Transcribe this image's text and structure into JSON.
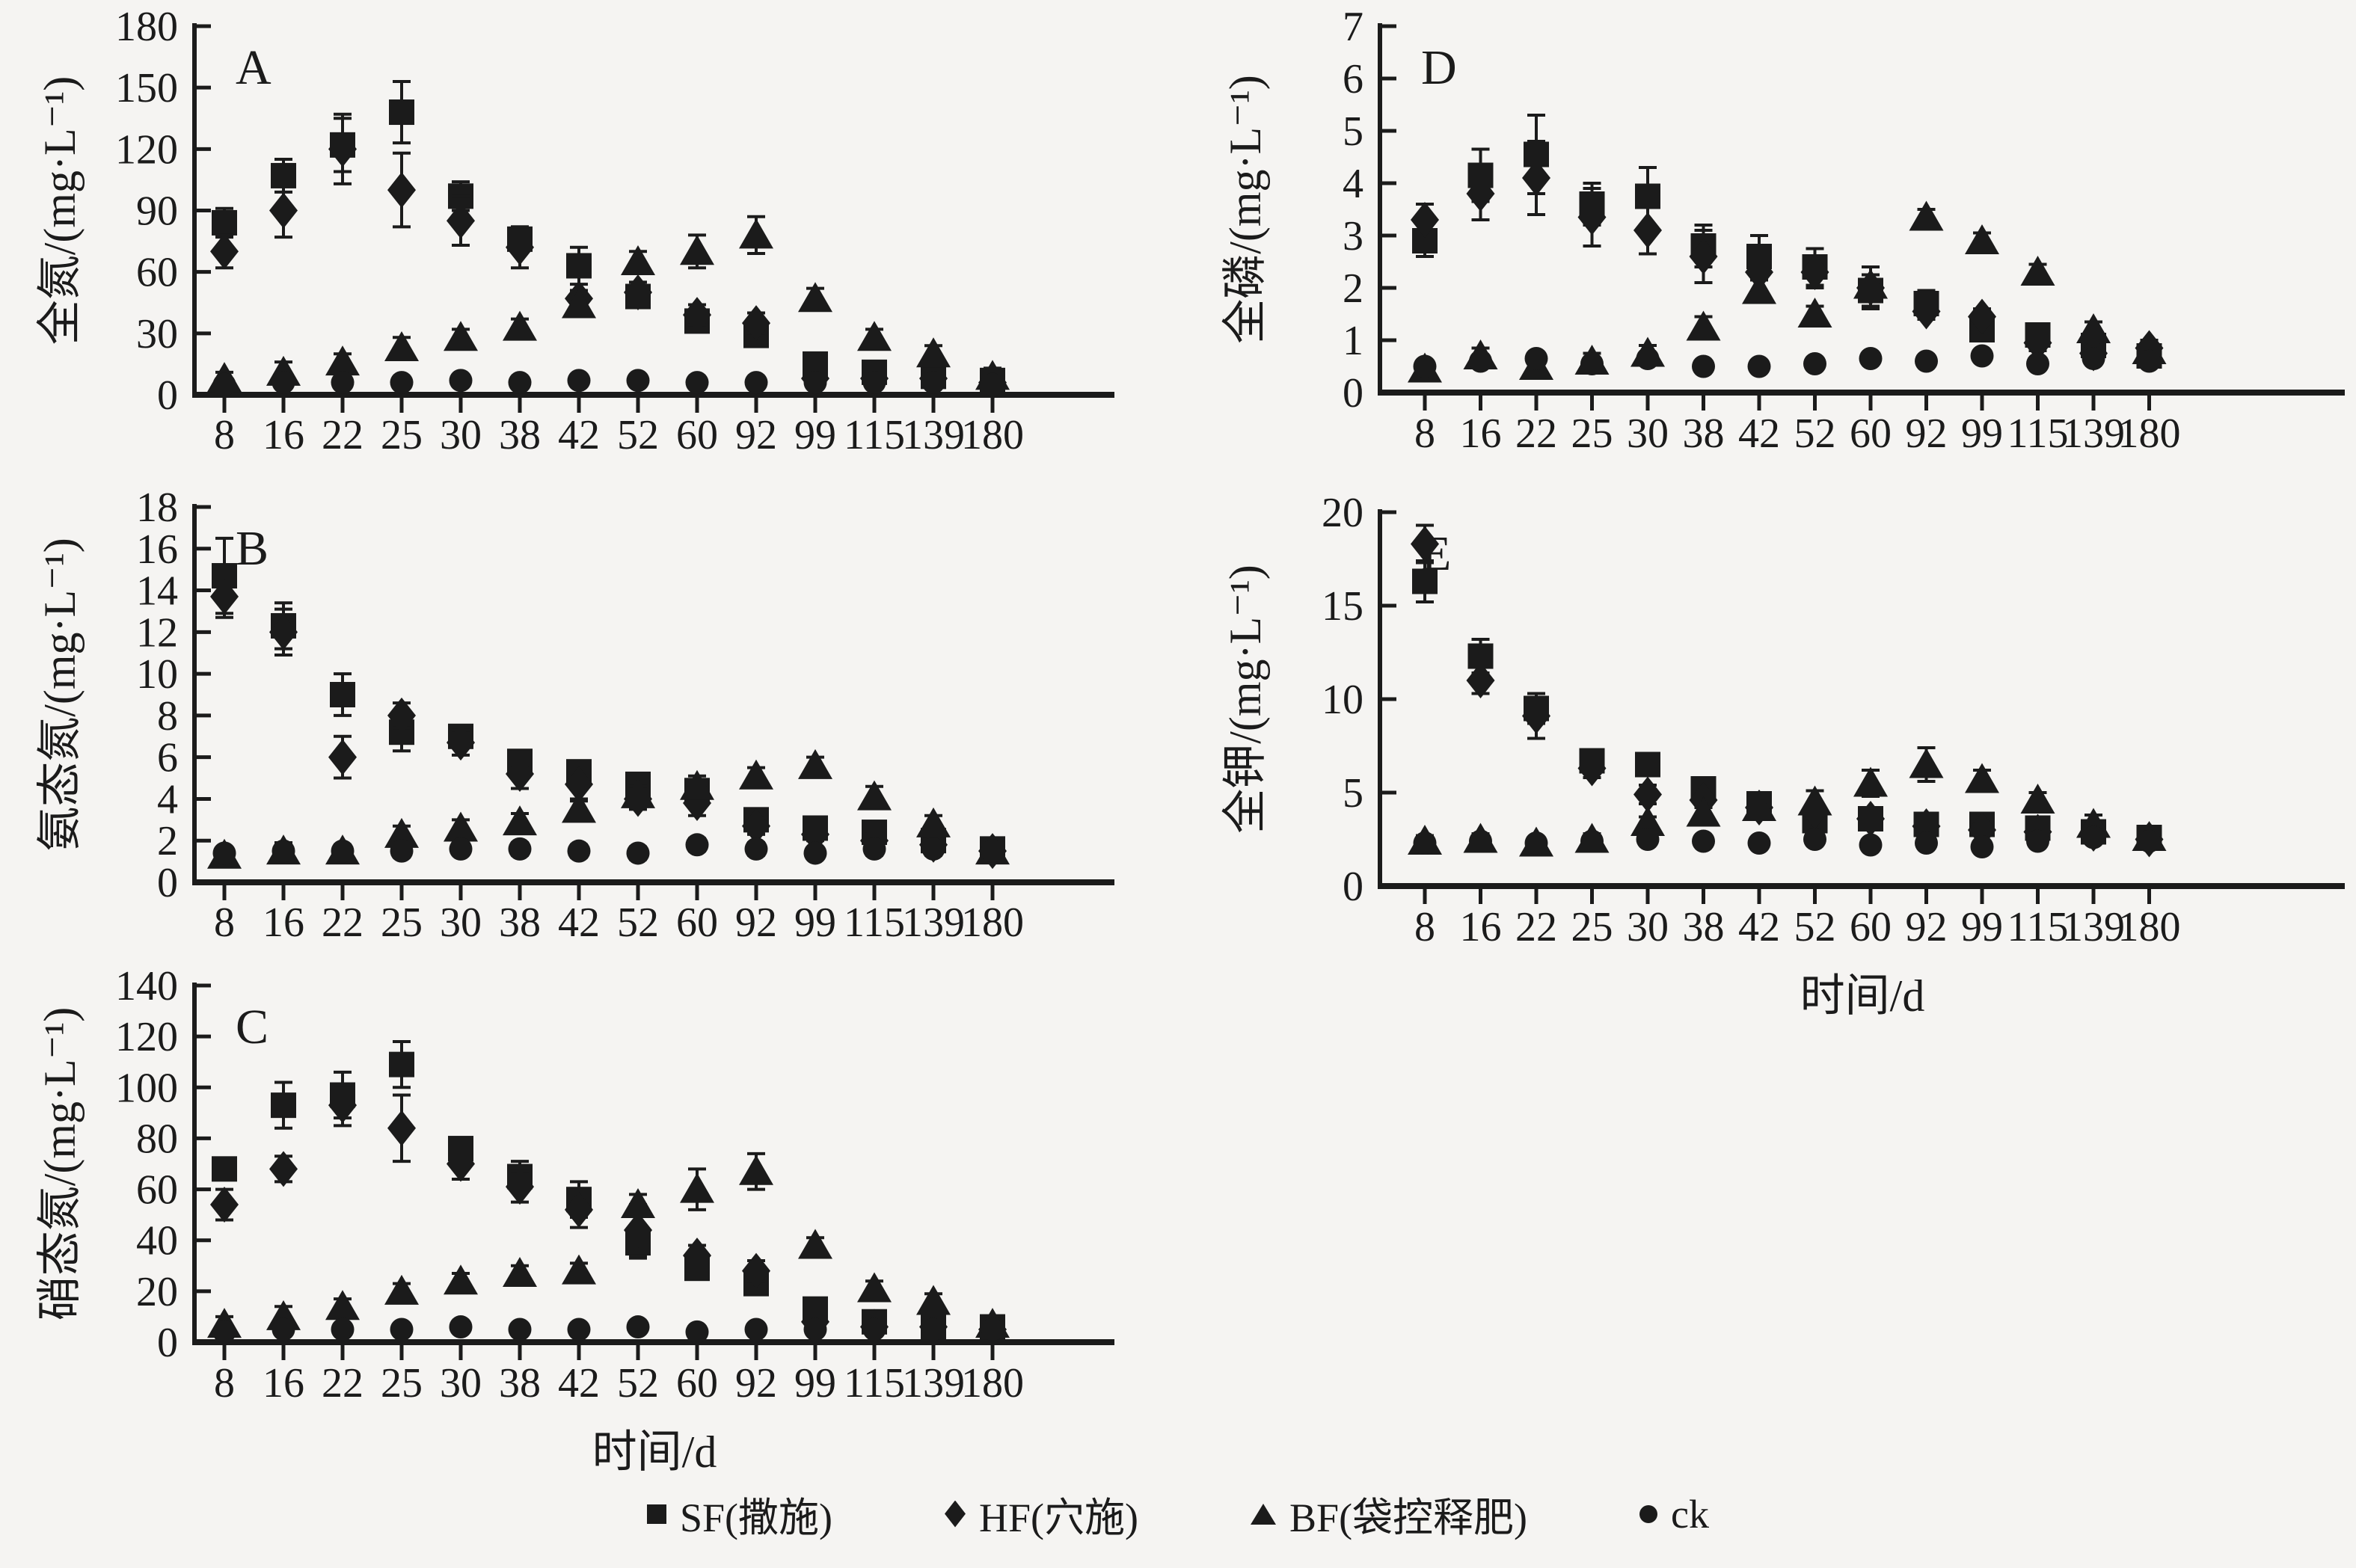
{
  "page": {
    "background": "#f5f4f2",
    "ink": "#1b1b1b"
  },
  "x_axis": {
    "label": "时间/d",
    "categories": [
      8,
      16,
      22,
      25,
      30,
      38,
      42,
      52,
      60,
      92,
      99,
      115,
      139,
      180
    ]
  },
  "legend": {
    "items": [
      {
        "marker": "square",
        "label": "SF(撒施)"
      },
      {
        "marker": "diamond",
        "label": "HF(穴施)"
      },
      {
        "marker": "triangle",
        "label": "BF(袋控释肥)"
      },
      {
        "marker": "circle",
        "label": "ck"
      }
    ]
  },
  "chart_data": [
    {
      "id": "A",
      "type": "scatter",
      "panel_label": "A",
      "ylabel": "全氮/(mg·L⁻¹)",
      "xlabel": "",
      "categories": [
        8,
        16,
        22,
        25,
        30,
        38,
        42,
        52,
        60,
        92,
        99,
        115,
        139,
        180
      ],
      "ylim": [
        0,
        180
      ],
      "ytick_step": 30,
      "grid": false,
      "series": [
        {
          "name": "SF(撒施)",
          "marker": "square",
          "values": [
            84,
            107,
            122,
            138,
            97,
            76,
            63,
            48,
            36,
            29,
            15,
            11,
            9,
            7
          ],
          "errors": [
            7,
            8,
            13,
            15,
            7,
            6,
            9,
            5,
            5,
            4,
            5,
            4,
            3,
            2
          ]
        },
        {
          "name": "HF(穴施)",
          "marker": "diamond",
          "values": [
            70,
            90,
            120,
            100,
            85,
            72,
            47,
            50,
            39,
            35,
            8,
            8,
            8,
            6
          ],
          "errors": [
            8,
            13,
            17,
            18,
            12,
            10,
            4,
            5,
            5,
            5,
            2,
            2,
            2,
            2
          ]
        },
        {
          "name": "BF(袋控释肥)",
          "marker": "triangle",
          "values": [
            8,
            11,
            16,
            23,
            28,
            33,
            44,
            65,
            70,
            78,
            47,
            28,
            20,
            9
          ],
          "errors": [
            3,
            5,
            4,
            5,
            4,
            4,
            4,
            5,
            8,
            9,
            5,
            4,
            4,
            4
          ]
        },
        {
          "name": "ck",
          "marker": "circle",
          "values": [
            5,
            6,
            6,
            6,
            7,
            6,
            7,
            7,
            6,
            6,
            6,
            6,
            6,
            5
          ],
          "errors": [
            2,
            2,
            2,
            2,
            2,
            2,
            2,
            2,
            2,
            2,
            2,
            2,
            2,
            2
          ]
        }
      ]
    },
    {
      "id": "B",
      "type": "scatter",
      "panel_label": "B",
      "ylabel": "氨态氮/(mg·L⁻¹)",
      "xlabel": "",
      "categories": [
        8,
        16,
        22,
        25,
        30,
        38,
        42,
        52,
        60,
        92,
        99,
        115,
        139,
        180
      ],
      "ylim": [
        0,
        18
      ],
      "ytick_step": 2,
      "grid": false,
      "series": [
        {
          "name": "SF(撒施)",
          "marker": "square",
          "values": [
            14.7,
            12.3,
            9.0,
            7.2,
            7.0,
            5.8,
            5.3,
            4.7,
            4.4,
            3.0,
            2.6,
            2.4,
            2.0,
            1.6
          ],
          "errors": [
            1.8,
            1.1,
            1.0,
            0.9,
            0.5,
            0.5,
            0.5,
            0.4,
            0.4,
            0.3,
            0.3,
            0.3,
            0.3,
            0.2
          ]
        },
        {
          "name": "HF(穴施)",
          "marker": "diamond",
          "values": [
            13.7,
            12.0,
            6.0,
            8.0,
            6.7,
            5.2,
            4.7,
            4.0,
            3.8,
            2.7,
            2.3,
            2.0,
            1.8,
            1.5
          ],
          "errors": [
            1.0,
            1.1,
            1.0,
            0.6,
            0.6,
            0.7,
            0.8,
            0.5,
            0.6,
            0.4,
            0.3,
            0.3,
            0.2,
            0.2
          ]
        },
        {
          "name": "BF(袋控释肥)",
          "marker": "triangle",
          "values": [
            1.3,
            1.5,
            1.5,
            2.3,
            2.6,
            2.9,
            3.5,
            4.2,
            4.6,
            5.1,
            5.6,
            4.1,
            2.8,
            1.5
          ],
          "errors": [
            0.3,
            0.4,
            0.3,
            0.4,
            0.4,
            0.4,
            0.5,
            0.4,
            0.5,
            0.4,
            0.4,
            0.5,
            0.4,
            0.3
          ]
        },
        {
          "name": "ck",
          "marker": "circle",
          "values": [
            1.4,
            1.5,
            1.5,
            1.5,
            1.6,
            1.6,
            1.5,
            1.4,
            1.8,
            1.6,
            1.4,
            1.6,
            1.6,
            1.5
          ],
          "errors": [
            0.2,
            0.3,
            0.2,
            0.3,
            0.2,
            0.3,
            0.3,
            0.3,
            0.3,
            0.3,
            0.2,
            0.3,
            0.3,
            0.2
          ]
        }
      ]
    },
    {
      "id": "C",
      "type": "scatter",
      "panel_label": "C",
      "ylabel": "硝态氮/(mg·L⁻¹)",
      "xlabel": "时间/d",
      "categories": [
        8,
        16,
        22,
        25,
        30,
        38,
        42,
        52,
        60,
        92,
        99,
        115,
        139,
        180
      ],
      "ylim": [
        0,
        140
      ],
      "ytick_step": 20,
      "grid": false,
      "series": [
        {
          "name": "SF(撒施)",
          "marker": "square",
          "values": [
            68,
            93,
            97,
            109,
            76,
            65,
            56,
            39,
            29,
            23,
            13,
            8,
            6,
            6
          ],
          "errors": [
            4,
            9,
            9,
            9,
            4,
            6,
            7,
            6,
            3,
            3,
            3,
            3,
            2,
            2
          ]
        },
        {
          "name": "HF(穴施)",
          "marker": "diamond",
          "values": [
            54,
            68,
            93,
            84,
            70,
            61,
            52,
            44,
            34,
            28,
            8,
            6,
            6,
            5
          ],
          "errors": [
            6,
            5,
            8,
            13,
            6,
            6,
            7,
            10,
            4,
            4,
            2,
            2,
            2,
            2
          ]
        },
        {
          "name": "BF(袋控释肥)",
          "marker": "triangle",
          "values": [
            7,
            10,
            14,
            20,
            24,
            27,
            28,
            54,
            60,
            67,
            38,
            21,
            16,
            7
          ],
          "errors": [
            3,
            4,
            3,
            3,
            3,
            3,
            3,
            4,
            8,
            7,
            3,
            3,
            3,
            3
          ]
        },
        {
          "name": "ck",
          "marker": "circle",
          "values": [
            4,
            5,
            5,
            5,
            6,
            5,
            5,
            6,
            4,
            5,
            5,
            5,
            5,
            5
          ],
          "errors": [
            2,
            2,
            2,
            2,
            2,
            2,
            2,
            2,
            2,
            2,
            2,
            2,
            2,
            2
          ]
        }
      ]
    },
    {
      "id": "D",
      "type": "scatter",
      "panel_label": "D",
      "ylabel": "全磷/(mg·L⁻¹)",
      "xlabel": "",
      "categories": [
        8,
        16,
        22,
        25,
        30,
        38,
        42,
        52,
        60,
        92,
        99,
        115,
        139,
        180
      ],
      "ylim": [
        0,
        7
      ],
      "ytick_step": 1,
      "grid": false,
      "series": [
        {
          "name": "SF(撒施)",
          "marker": "square",
          "values": [
            2.9,
            4.15,
            4.55,
            3.6,
            3.75,
            2.8,
            2.6,
            2.4,
            1.95,
            1.7,
            1.2,
            1.1,
            0.9,
            0.7
          ],
          "errors": [
            0.3,
            0.5,
            0.75,
            0.4,
            0.55,
            0.4,
            0.4,
            0.35,
            0.3,
            0.25,
            0.2,
            0.2,
            0.15,
            0.15
          ]
        },
        {
          "name": "HF(穴施)",
          "marker": "diamond",
          "values": [
            3.3,
            3.8,
            4.1,
            3.35,
            3.1,
            2.6,
            2.3,
            2.3,
            2.0,
            1.55,
            1.45,
            0.95,
            0.75,
            0.85
          ],
          "errors": [
            0.3,
            0.5,
            0.7,
            0.55,
            0.45,
            0.5,
            0.45,
            0.3,
            0.4,
            0.15,
            0.15,
            0.15,
            0.1,
            0.15
          ]
        },
        {
          "name": "BF(袋控释肥)",
          "marker": "triangle",
          "values": [
            0.45,
            0.7,
            0.5,
            0.6,
            0.75,
            1.25,
            1.95,
            1.5,
            2.05,
            3.35,
            2.9,
            2.3,
            1.2,
            0.8
          ],
          "errors": [
            0.15,
            0.15,
            0.15,
            0.15,
            0.15,
            0.2,
            0.2,
            0.15,
            0.2,
            0.15,
            0.15,
            0.15,
            0.15,
            0.15
          ]
        },
        {
          "name": "ck",
          "marker": "circle",
          "values": [
            0.5,
            0.6,
            0.65,
            0.55,
            0.65,
            0.5,
            0.5,
            0.55,
            0.65,
            0.6,
            0.7,
            0.55,
            0.65,
            0.6
          ],
          "errors": [
            0.1,
            0.1,
            0.1,
            0.1,
            0.1,
            0.1,
            0.1,
            0.1,
            0.1,
            0.1,
            0.1,
            0.1,
            0.1,
            0.1
          ]
        }
      ]
    },
    {
      "id": "E",
      "type": "scatter",
      "panel_label": "E",
      "ylabel": "全钾/(mg·L⁻¹)",
      "xlabel": "时间/d",
      "categories": [
        8,
        16,
        22,
        25,
        30,
        38,
        42,
        52,
        60,
        92,
        99,
        115,
        139,
        180
      ],
      "ylim": [
        0,
        20
      ],
      "ytick_step": 5,
      "grid": false,
      "series": [
        {
          "name": "SF(撒施)",
          "marker": "square",
          "values": [
            16.3,
            12.3,
            9.5,
            6.7,
            6.5,
            5.2,
            4.4,
            3.5,
            3.6,
            3.3,
            3.3,
            3.1,
            2.9,
            2.6
          ],
          "errors": [
            1.1,
            0.9,
            0.8,
            0.5,
            0.4,
            0.4,
            0.4,
            0.3,
            0.3,
            0.3,
            0.3,
            0.3,
            0.2,
            0.2
          ]
        },
        {
          "name": "HF(穴施)",
          "marker": "diamond",
          "values": [
            18.3,
            11.0,
            9.1,
            6.3,
            4.9,
            4.6,
            4.2,
            4.0,
            3.6,
            3.2,
            3.0,
            2.9,
            2.8,
            2.5
          ],
          "errors": [
            1.0,
            0.7,
            1.2,
            0.5,
            0.5,
            0.4,
            0.4,
            0.3,
            0.3,
            0.3,
            0.3,
            0.2,
            0.2,
            0.2
          ]
        },
        {
          "name": "BF(袋控释肥)",
          "marker": "triangle",
          "values": [
            2.4,
            2.5,
            2.3,
            2.5,
            3.4,
            3.9,
            4.2,
            4.5,
            5.5,
            6.5,
            5.7,
            4.6,
            3.3,
            2.6
          ],
          "errors": [
            0.3,
            0.3,
            0.2,
            0.3,
            0.3,
            0.3,
            0.3,
            0.6,
            0.7,
            0.9,
            0.5,
            0.4,
            0.5,
            0.3
          ]
        },
        {
          "name": "ck",
          "marker": "circle",
          "values": [
            2.3,
            2.4,
            2.3,
            2.4,
            2.5,
            2.4,
            2.3,
            2.5,
            2.2,
            2.3,
            2.1,
            2.4,
            2.6,
            2.4
          ],
          "errors": [
            0.2,
            0.2,
            0.2,
            0.2,
            0.2,
            0.2,
            0.2,
            0.2,
            0.2,
            0.2,
            0.2,
            0.2,
            0.2,
            0.2
          ]
        }
      ]
    }
  ]
}
